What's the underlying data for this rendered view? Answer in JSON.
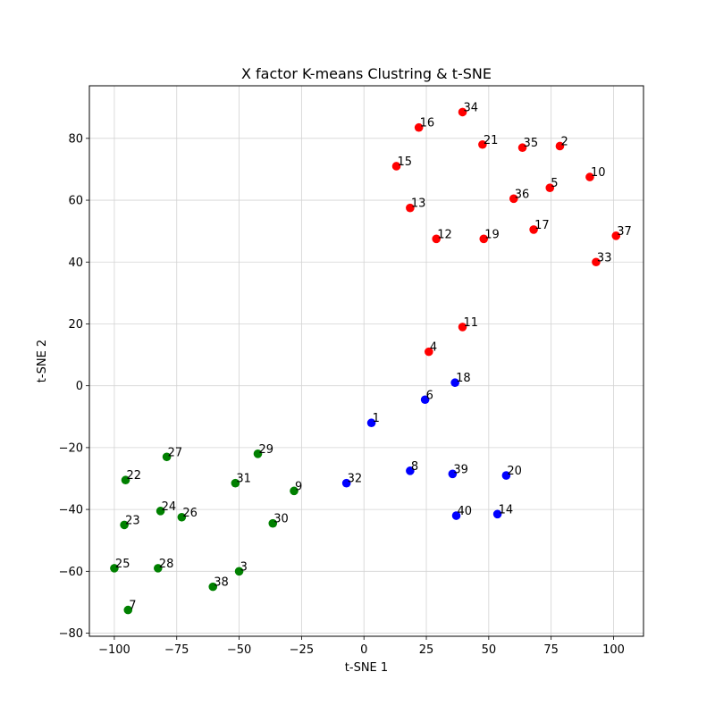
{
  "chart_data": {
    "type": "scatter",
    "title": "X factor K-means Clustring & t-SNE",
    "xlabel": "t-SNE 1",
    "ylabel": "t-SNE 2",
    "xlim": [
      -110,
      112
    ],
    "ylim": [
      -81,
      97
    ],
    "xticks": [
      -100,
      -75,
      -50,
      -25,
      0,
      25,
      50,
      75,
      100
    ],
    "yticks": [
      -80,
      -60,
      -40,
      -20,
      0,
      20,
      40,
      60,
      80
    ],
    "grid": true,
    "colors": {
      "red": "#ff0000",
      "blue": "#0000ff",
      "green": "#008000"
    },
    "points": [
      {
        "label": "34",
        "x": 39.5,
        "y": 88.5,
        "color": "red"
      },
      {
        "label": "16",
        "x": 22,
        "y": 83.5,
        "color": "red"
      },
      {
        "label": "21",
        "x": 47.5,
        "y": 78,
        "color": "red"
      },
      {
        "label": "35",
        "x": 63.5,
        "y": 77,
        "color": "red"
      },
      {
        "label": "2",
        "x": 78.5,
        "y": 77.5,
        "color": "red"
      },
      {
        "label": "15",
        "x": 13,
        "y": 71,
        "color": "red"
      },
      {
        "label": "10",
        "x": 90.5,
        "y": 67.5,
        "color": "red"
      },
      {
        "label": "5",
        "x": 74.5,
        "y": 64,
        "color": "red"
      },
      {
        "label": "36",
        "x": 60,
        "y": 60.5,
        "color": "red"
      },
      {
        "label": "13",
        "x": 18.5,
        "y": 57.5,
        "color": "red"
      },
      {
        "label": "17",
        "x": 68,
        "y": 50.5,
        "color": "red"
      },
      {
        "label": "12",
        "x": 29,
        "y": 47.5,
        "color": "red"
      },
      {
        "label": "19",
        "x": 48,
        "y": 47.5,
        "color": "red"
      },
      {
        "label": "37",
        "x": 101,
        "y": 48.5,
        "color": "red"
      },
      {
        "label": "33",
        "x": 93,
        "y": 40,
        "color": "red"
      },
      {
        "label": "11",
        "x": 39.5,
        "y": 19,
        "color": "red"
      },
      {
        "label": "4",
        "x": 26,
        "y": 11,
        "color": "red"
      },
      {
        "label": "18",
        "x": 36.5,
        "y": 1,
        "color": "blue"
      },
      {
        "label": "6",
        "x": 24.5,
        "y": -4.5,
        "color": "blue"
      },
      {
        "label": "1",
        "x": 3,
        "y": -12,
        "color": "blue"
      },
      {
        "label": "8",
        "x": 18.5,
        "y": -27.5,
        "color": "blue"
      },
      {
        "label": "39",
        "x": 35.5,
        "y": -28.5,
        "color": "blue"
      },
      {
        "label": "20",
        "x": 57,
        "y": -29,
        "color": "blue"
      },
      {
        "label": "32",
        "x": -7,
        "y": -31.5,
        "color": "blue"
      },
      {
        "label": "40",
        "x": 37,
        "y": -42,
        "color": "blue"
      },
      {
        "label": "14",
        "x": 53.5,
        "y": -41.5,
        "color": "blue"
      },
      {
        "label": "27",
        "x": -79,
        "y": -23,
        "color": "green"
      },
      {
        "label": "29",
        "x": -42.5,
        "y": -22,
        "color": "green"
      },
      {
        "label": "22",
        "x": -95.5,
        "y": -30.5,
        "color": "green"
      },
      {
        "label": "31",
        "x": -51.5,
        "y": -31.5,
        "color": "green"
      },
      {
        "label": "9",
        "x": -28,
        "y": -34,
        "color": "green"
      },
      {
        "label": "24",
        "x": -81.5,
        "y": -40.5,
        "color": "green"
      },
      {
        "label": "26",
        "x": -73,
        "y": -42.5,
        "color": "green"
      },
      {
        "label": "23",
        "x": -96,
        "y": -45,
        "color": "green"
      },
      {
        "label": "30",
        "x": -36.5,
        "y": -44.5,
        "color": "green"
      },
      {
        "label": "25",
        "x": -100,
        "y": -59,
        "color": "green"
      },
      {
        "label": "28",
        "x": -82.5,
        "y": -59,
        "color": "green"
      },
      {
        "label": "3",
        "x": -50,
        "y": -60,
        "color": "green"
      },
      {
        "label": "38",
        "x": -60.5,
        "y": -65,
        "color": "green"
      },
      {
        "label": "7",
        "x": -94.5,
        "y": -72.5,
        "color": "green"
      }
    ]
  }
}
